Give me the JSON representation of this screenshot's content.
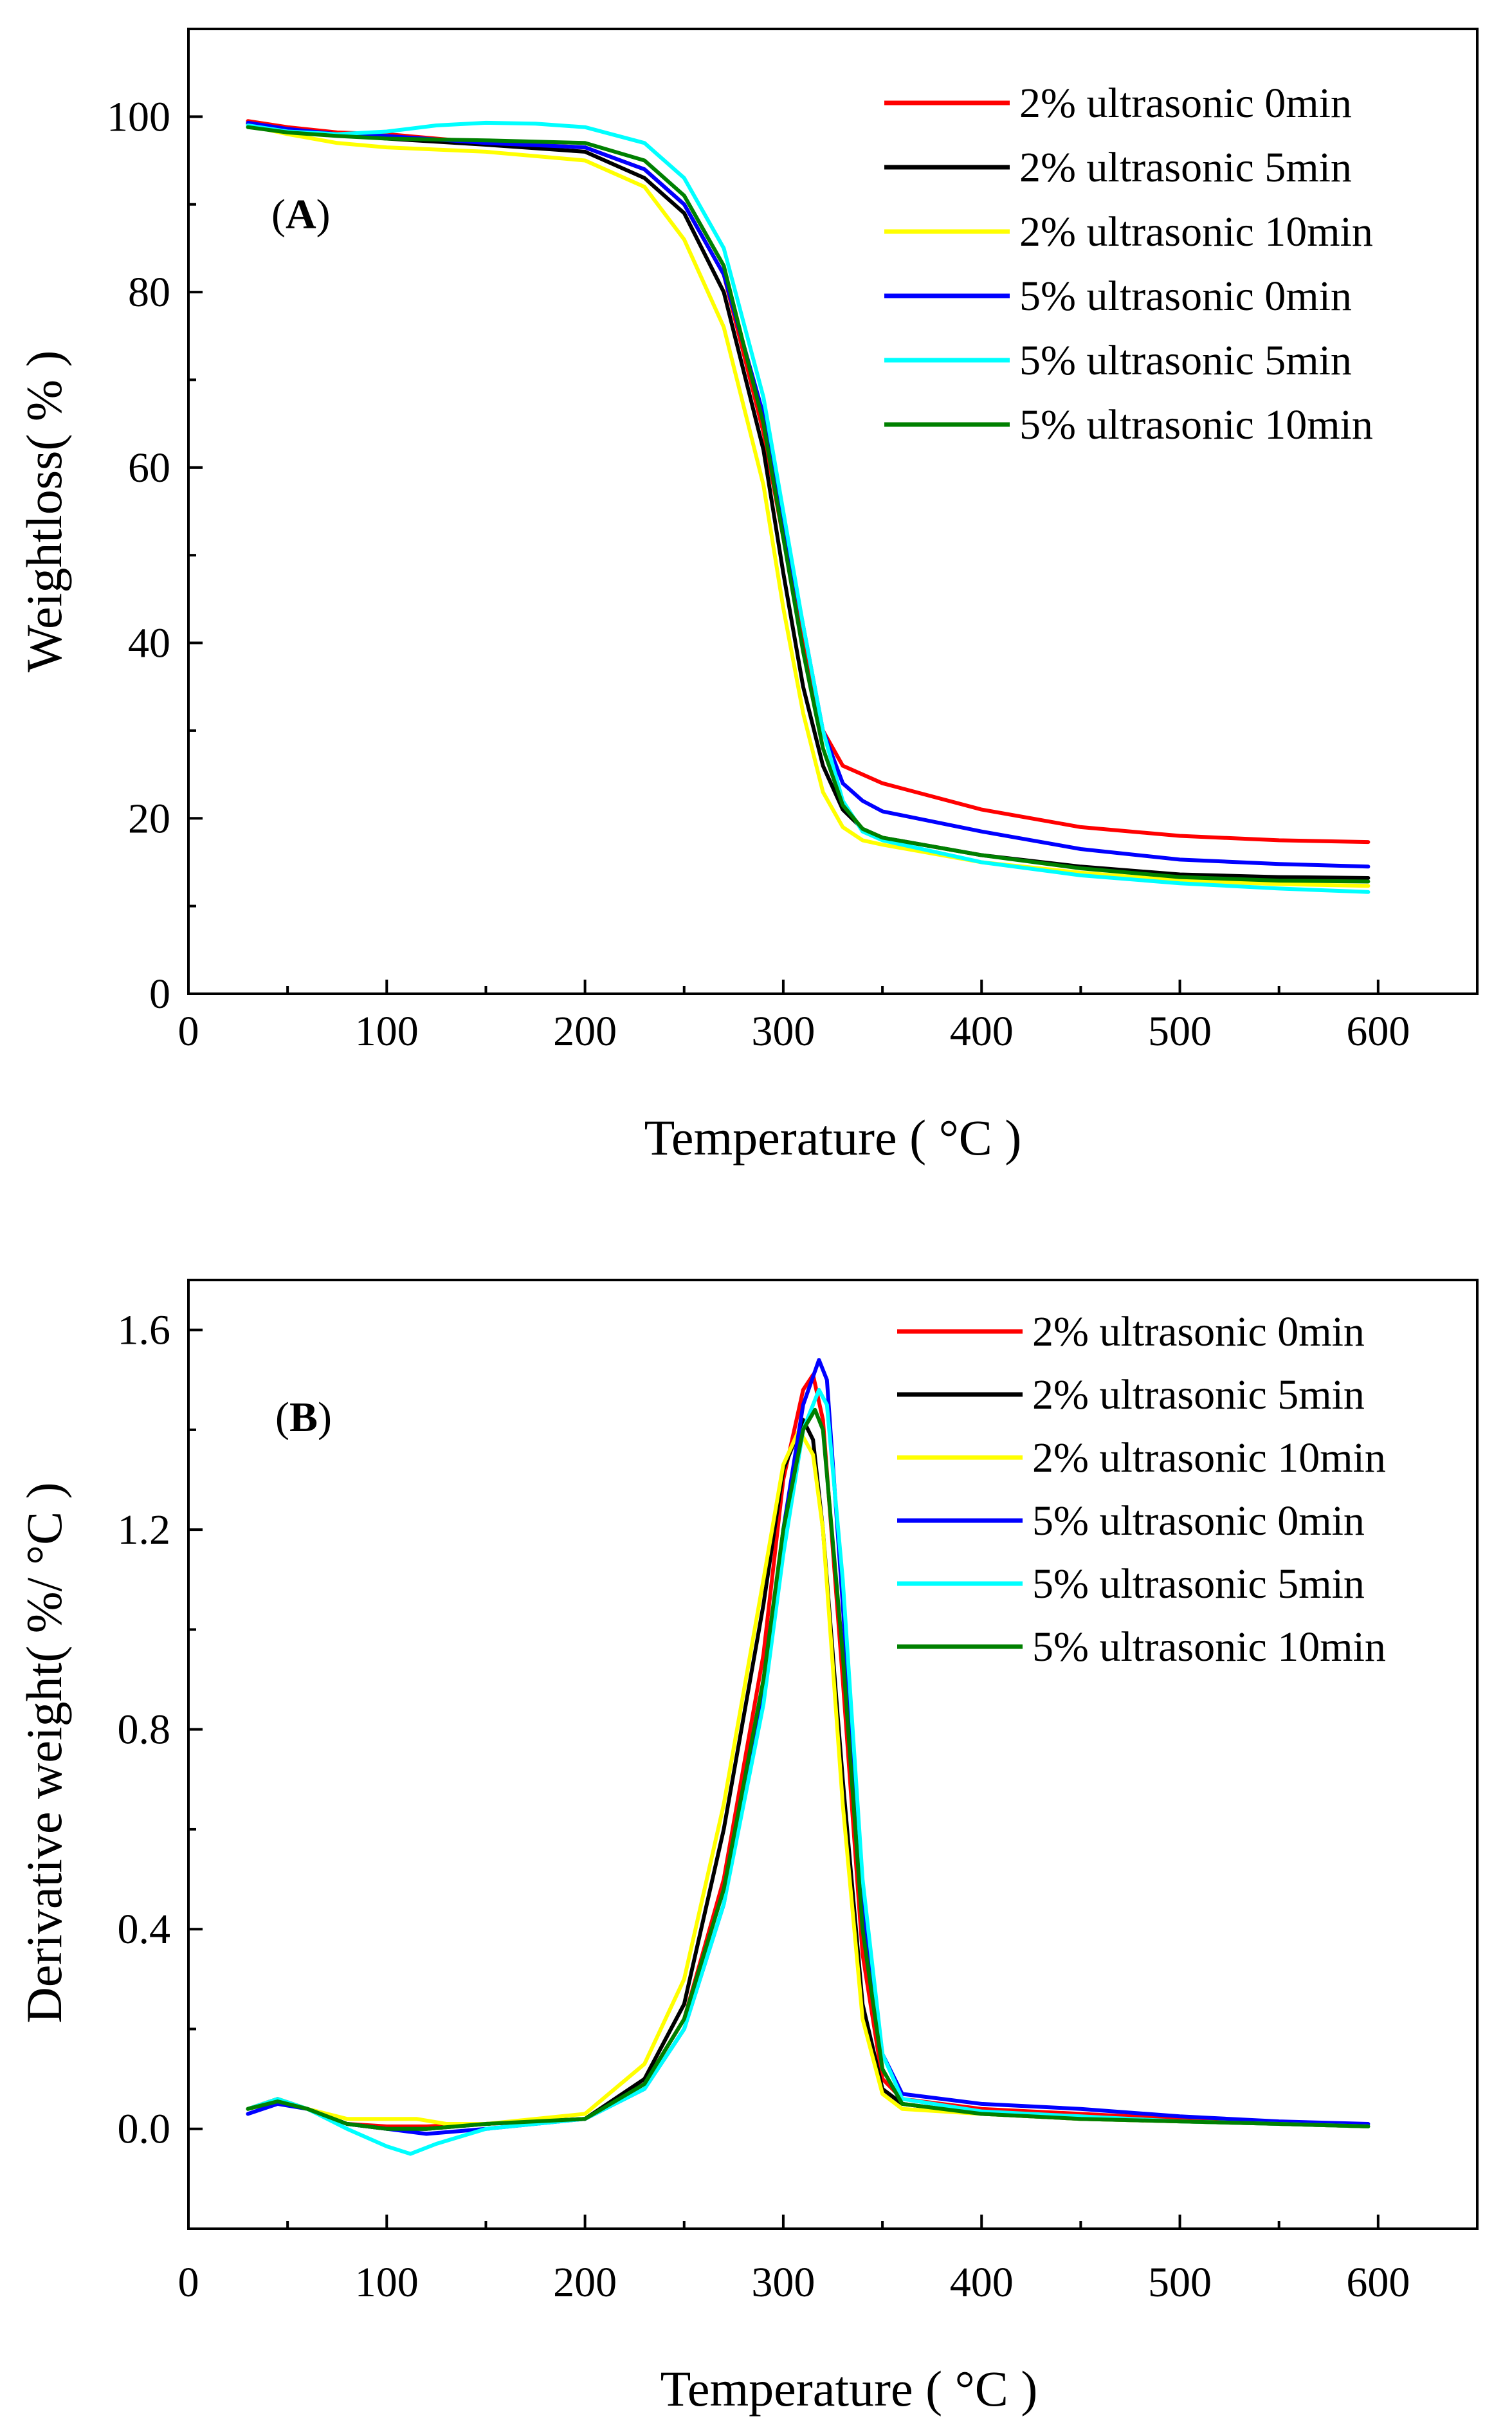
{
  "chart_data": [
    {
      "type": "line",
      "panel_label": "A",
      "xlabel": "Temperature ( °C )",
      "ylabel": "Weightloss( % )",
      "xlim": [
        0,
        650
      ],
      "ylim": [
        0,
        110
      ],
      "xticks": [
        0,
        100,
        200,
        300,
        400,
        500,
        600
      ],
      "yticks": [
        0,
        20,
        40,
        60,
        80,
        100
      ],
      "legend_position": "top-right",
      "series": [
        {
          "name": "2% ultrasonic 0min",
          "color": "#ff0000",
          "x": [
            30,
            50,
            75,
            100,
            150,
            200,
            230,
            250,
            270,
            290,
            300,
            310,
            320,
            330,
            335,
            350,
            400,
            450,
            500,
            550,
            595
          ],
          "y": [
            99.5,
            98.8,
            98.2,
            98.0,
            97.0,
            96.5,
            94,
            90,
            82,
            64,
            52,
            40,
            30,
            26,
            25.5,
            24,
            21,
            19,
            18,
            17.5,
            17.3
          ]
        },
        {
          "name": "2% ultrasonic 5min",
          "color": "#000000",
          "x": [
            30,
            50,
            75,
            100,
            150,
            200,
            230,
            250,
            270,
            290,
            300,
            310,
            320,
            330,
            340,
            350,
            400,
            450,
            500,
            550,
            595
          ],
          "y": [
            99.2,
            98.5,
            98.0,
            97.5,
            96.8,
            96.0,
            93,
            89,
            80,
            62,
            48,
            35,
            26,
            21,
            18.8,
            17.8,
            15.8,
            14.5,
            13.6,
            13.3,
            13.2
          ]
        },
        {
          "name": "2% ultrasonic 10min",
          "color": "#ffff00",
          "x": [
            30,
            50,
            75,
            100,
            150,
            200,
            230,
            250,
            270,
            290,
            300,
            310,
            320,
            330,
            340,
            350,
            400,
            450,
            500,
            550,
            595
          ],
          "y": [
            99.0,
            98.0,
            97.0,
            96.5,
            96.0,
            95.0,
            92,
            86,
            76,
            58,
            44,
            32,
            23,
            19,
            17.5,
            17.0,
            15.0,
            13.8,
            12.9,
            12.5,
            12.3
          ]
        },
        {
          "name": "5% ultrasonic 0min",
          "color": "#0000ff",
          "x": [
            30,
            50,
            75,
            100,
            150,
            200,
            230,
            250,
            270,
            290,
            300,
            310,
            320,
            330,
            340,
            350,
            400,
            450,
            500,
            550,
            595
          ],
          "y": [
            99.3,
            98.6,
            98.0,
            97.8,
            97.0,
            96.5,
            94,
            90,
            82,
            66,
            54,
            42,
            30,
            24,
            22,
            20.8,
            18.5,
            16.5,
            15.3,
            14.8,
            14.5
          ]
        },
        {
          "name": "5% ultrasonic 5min",
          "color": "#00ffff",
          "x": [
            30,
            50,
            75,
            100,
            125,
            150,
            175,
            200,
            230,
            250,
            270,
            290,
            300,
            310,
            320,
            330,
            340,
            350,
            400,
            450,
            500,
            550,
            595
          ],
          "y": [
            99.0,
            98.3,
            98.0,
            98.3,
            99.0,
            99.3,
            99.2,
            98.8,
            97,
            93,
            85,
            68,
            55,
            42,
            30,
            22,
            18.5,
            17.5,
            15.0,
            13.5,
            12.6,
            12.0,
            11.6
          ]
        },
        {
          "name": "5% ultrasonic 10min",
          "color": "#008000",
          "x": [
            30,
            50,
            75,
            100,
            150,
            200,
            230,
            250,
            270,
            290,
            300,
            310,
            320,
            330,
            340,
            350,
            400,
            450,
            500,
            550,
            595
          ],
          "y": [
            98.8,
            98.2,
            97.8,
            97.5,
            97.3,
            97.0,
            95,
            91,
            83,
            65,
            52,
            39,
            28,
            21.5,
            18.8,
            17.8,
            15.8,
            14.3,
            13.3,
            12.9,
            12.8
          ]
        }
      ]
    },
    {
      "type": "line",
      "panel_label": "B",
      "xlabel": "Temperature ( °C )",
      "ylabel": "Derivative weight( %/ °C )",
      "xlim": [
        0,
        650
      ],
      "ylim": [
        -0.2,
        1.7
      ],
      "xticks": [
        0,
        100,
        200,
        300,
        400,
        500,
        600
      ],
      "yticks": [
        0.0,
        0.4,
        0.8,
        1.2,
        1.6
      ],
      "ytick_labels": [
        "0.0",
        "0.4",
        "0.8",
        "1.2",
        "1.6"
      ],
      "legend_position": "top-right",
      "series": [
        {
          "name": "2% ultrasonic 0min",
          "color": "#ff0000",
          "x": [
            30,
            45,
            60,
            80,
            100,
            120,
            150,
            200,
            230,
            250,
            270,
            290,
            300,
            310,
            315,
            320,
            330,
            340,
            350,
            360,
            400,
            450,
            500,
            550,
            595
          ],
          "y": [
            0.04,
            0.06,
            0.04,
            0.01,
            0.005,
            0.005,
            0.01,
            0.02,
            0.09,
            0.22,
            0.5,
            0.95,
            1.3,
            1.48,
            1.51,
            1.42,
            0.9,
            0.35,
            0.1,
            0.06,
            0.04,
            0.03,
            0.02,
            0.01,
            0.005
          ]
        },
        {
          "name": "2% ultrasonic 5min",
          "color": "#000000",
          "x": [
            30,
            45,
            60,
            80,
            100,
            120,
            150,
            200,
            230,
            250,
            270,
            290,
            300,
            310,
            315,
            320,
            330,
            340,
            350,
            360,
            400,
            450,
            500,
            550,
            595
          ],
          "y": [
            0.04,
            0.06,
            0.04,
            0.01,
            0.0,
            0.0,
            0.01,
            0.02,
            0.1,
            0.25,
            0.6,
            1.05,
            1.32,
            1.42,
            1.38,
            1.2,
            0.7,
            0.25,
            0.08,
            0.05,
            0.03,
            0.02,
            0.015,
            0.01,
            0.005
          ]
        },
        {
          "name": "2% ultrasonic 10min",
          "color": "#ffff00",
          "x": [
            30,
            45,
            60,
            80,
            100,
            115,
            130,
            150,
            200,
            230,
            250,
            270,
            290,
            300,
            308,
            315,
            320,
            330,
            340,
            350,
            360,
            400,
            450,
            500,
            550,
            595
          ],
          "y": [
            0.04,
            0.06,
            0.04,
            0.02,
            0.02,
            0.02,
            0.01,
            0.01,
            0.03,
            0.13,
            0.3,
            0.65,
            1.1,
            1.33,
            1.4,
            1.35,
            1.2,
            0.65,
            0.22,
            0.07,
            0.04,
            0.03,
            0.02,
            0.015,
            0.01,
            0.005
          ]
        },
        {
          "name": "5% ultrasonic 0min",
          "color": "#0000ff",
          "x": [
            30,
            45,
            60,
            80,
            100,
            120,
            150,
            200,
            230,
            250,
            270,
            290,
            300,
            310,
            318,
            322,
            330,
            340,
            350,
            360,
            400,
            450,
            500,
            550,
            595
          ],
          "y": [
            0.03,
            0.05,
            0.04,
            0.01,
            0.0,
            -0.01,
            0.0,
            0.02,
            0.08,
            0.2,
            0.45,
            0.88,
            1.2,
            1.45,
            1.54,
            1.5,
            1.05,
            0.45,
            0.15,
            0.07,
            0.05,
            0.04,
            0.025,
            0.015,
            0.01
          ]
        },
        {
          "name": "5% ultrasonic 5min",
          "color": "#00ffff",
          "x": [
            30,
            45,
            60,
            80,
            100,
            112,
            125,
            150,
            200,
            230,
            250,
            270,
            290,
            300,
            310,
            318,
            322,
            330,
            340,
            350,
            360,
            400,
            450,
            500,
            550,
            595
          ],
          "y": [
            0.04,
            0.06,
            0.04,
            0.0,
            -0.035,
            -0.05,
            -0.03,
            0.0,
            0.02,
            0.08,
            0.2,
            0.45,
            0.85,
            1.15,
            1.4,
            1.48,
            1.45,
            1.1,
            0.5,
            0.15,
            0.06,
            0.035,
            0.025,
            0.015,
            0.01,
            0.005
          ]
        },
        {
          "name": "5% ultrasonic 10min",
          "color": "#008000",
          "x": [
            30,
            45,
            60,
            80,
            100,
            120,
            150,
            200,
            230,
            250,
            270,
            290,
            300,
            310,
            316,
            320,
            330,
            340,
            350,
            360,
            400,
            450,
            500,
            550,
            595
          ],
          "y": [
            0.04,
            0.055,
            0.04,
            0.01,
            0.0,
            0.0,
            0.01,
            0.02,
            0.09,
            0.22,
            0.48,
            0.9,
            1.2,
            1.4,
            1.44,
            1.4,
            0.95,
            0.4,
            0.12,
            0.05,
            0.03,
            0.02,
            0.015,
            0.01,
            0.005
          ]
        }
      ]
    }
  ]
}
